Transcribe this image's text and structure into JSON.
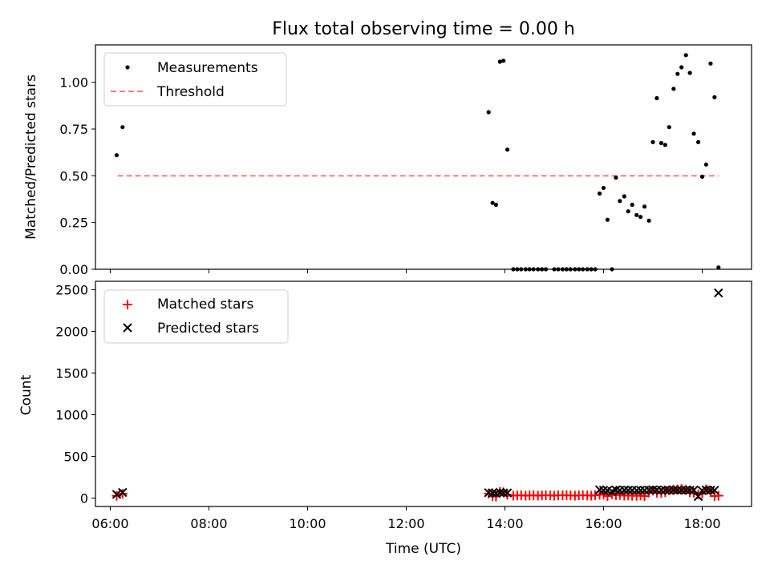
{
  "chart_data": [
    {
      "type": "scatter",
      "title": "Flux total observing time = 0.00 h",
      "xlabel": "",
      "ylabel": "Matched/Predicted stars",
      "xlim_hours": [
        5.7,
        19.0
      ],
      "ylim": [
        0,
        1.2
      ],
      "yticks": [
        0.0,
        0.25,
        0.5,
        0.75,
        1.0
      ],
      "ytick_labels": [
        "0.00",
        "0.25",
        "0.50",
        "0.75",
        "1.00"
      ],
      "legend": {
        "position": "upper-left",
        "labels": [
          "Measurements",
          "Threshold"
        ]
      },
      "threshold": {
        "name": "Threshold",
        "value": 0.5,
        "x_range_hours": [
          6.15,
          18.33
        ],
        "color": "#f08080"
      },
      "series": [
        {
          "name": "Measurements",
          "color": "#000000",
          "x_hours": [
            6.13,
            6.25,
            13.67,
            13.75,
            13.82,
            13.9,
            13.97,
            14.05,
            14.17,
            14.25,
            14.33,
            14.42,
            14.5,
            14.58,
            14.67,
            14.75,
            14.83,
            15.0,
            15.08,
            15.17,
            15.25,
            15.33,
            15.42,
            15.5,
            15.58,
            15.67,
            15.75,
            15.83,
            15.92,
            16.0,
            16.08,
            16.17,
            16.25,
            16.33,
            16.42,
            16.5,
            16.58,
            16.67,
            16.75,
            16.83,
            16.92,
            17.0,
            17.08,
            17.17,
            17.25,
            17.33,
            17.42,
            17.5,
            17.58,
            17.67,
            17.75,
            17.83,
            17.92,
            18.0,
            18.08,
            18.17,
            18.25,
            18.33
          ],
          "y": [
            0.61,
            0.76,
            0.84,
            0.355,
            0.345,
            1.11,
            1.115,
            0.64,
            0.0,
            0.0,
            0.0,
            0.0,
            0.0,
            0.0,
            0.0,
            0.0,
            0.0,
            0.0,
            0.0,
            0.0,
            0.0,
            0.0,
            0.0,
            0.0,
            0.0,
            0.0,
            0.0,
            0.0,
            0.405,
            0.435,
            0.265,
            0.0,
            0.49,
            0.365,
            0.39,
            0.31,
            0.345,
            0.29,
            0.28,
            0.335,
            0.26,
            0.68,
            0.915,
            0.675,
            0.665,
            0.76,
            0.965,
            1.045,
            1.08,
            1.145,
            1.05,
            0.725,
            0.68,
            0.495,
            0.56,
            1.1,
            0.92,
            0.01
          ]
        }
      ]
    },
    {
      "type": "scatter",
      "title": "",
      "xlabel": "Time (UTC)",
      "ylabel": "Count",
      "xlim_hours": [
        5.7,
        19.0
      ],
      "ylim": [
        -100,
        2600
      ],
      "yticks": [
        0,
        500,
        1000,
        1500,
        2000,
        2500
      ],
      "ytick_labels": [
        "0",
        "500",
        "1000",
        "1500",
        "2000",
        "2500"
      ],
      "xticks_hours": [
        6,
        8,
        10,
        12,
        14,
        16,
        18
      ],
      "xtick_labels": [
        "06:00",
        "08:00",
        "10:00",
        "12:00",
        "14:00",
        "16:00",
        "18:00"
      ],
      "legend": {
        "position": "upper-left",
        "labels": [
          "Matched stars",
          "Predicted stars"
        ]
      },
      "series": [
        {
          "name": "Matched stars",
          "marker": "plus",
          "color": "#ff0000",
          "x_hours": [
            6.13,
            6.25,
            13.67,
            13.75,
            13.82,
            13.9,
            13.97,
            14.05,
            14.17,
            14.25,
            14.33,
            14.42,
            14.5,
            14.58,
            14.67,
            14.75,
            14.83,
            14.92,
            15.0,
            15.08,
            15.17,
            15.25,
            15.33,
            15.42,
            15.5,
            15.58,
            15.67,
            15.75,
            15.83,
            15.92,
            16.0,
            16.08,
            16.17,
            16.25,
            16.33,
            16.42,
            16.5,
            16.58,
            16.67,
            16.75,
            16.83,
            16.92,
            17.0,
            17.08,
            17.17,
            17.25,
            17.33,
            17.42,
            17.5,
            17.58,
            17.67,
            17.75,
            17.83,
            17.92,
            18.0,
            18.08,
            18.17,
            18.25,
            18.33
          ],
          "y": [
            28,
            52,
            55,
            22,
            20,
            75,
            70,
            40,
            30,
            32,
            35,
            30,
            32,
            35,
            30,
            33,
            35,
            32,
            30,
            34,
            33,
            35,
            32,
            30,
            33,
            35,
            32,
            30,
            34,
            40,
            42,
            25,
            48,
            35,
            38,
            30,
            33,
            28,
            27,
            32,
            25,
            68,
            90,
            65,
            63,
            72,
            95,
            100,
            105,
            110,
            100,
            70,
            65,
            45,
            55,
            105,
            88,
            25,
            30
          ]
        },
        {
          "name": "Predicted stars",
          "marker": "x",
          "color": "#000000",
          "x_hours": [
            6.13,
            6.25,
            13.67,
            13.75,
            13.82,
            13.9,
            13.97,
            14.05,
            15.92,
            16.0,
            16.08,
            16.17,
            16.25,
            16.33,
            16.42,
            16.5,
            16.58,
            16.67,
            16.75,
            16.83,
            16.92,
            17.0,
            17.08,
            17.17,
            17.25,
            17.33,
            17.42,
            17.5,
            17.58,
            17.67,
            17.75,
            17.83,
            17.92,
            18.0,
            18.08,
            18.17,
            18.25,
            18.33
          ],
          "y": [
            45,
            68,
            65,
            62,
            58,
            68,
            63,
            62,
            100,
            95,
            92,
            80,
            98,
            95,
            97,
            95,
            95,
            93,
            95,
            95,
            95,
            100,
            98,
            96,
            95,
            95,
            98,
            95,
            96,
            96,
            95,
            97,
            20,
            90,
            98,
            95,
            95,
            2460
          ]
        }
      ]
    }
  ]
}
